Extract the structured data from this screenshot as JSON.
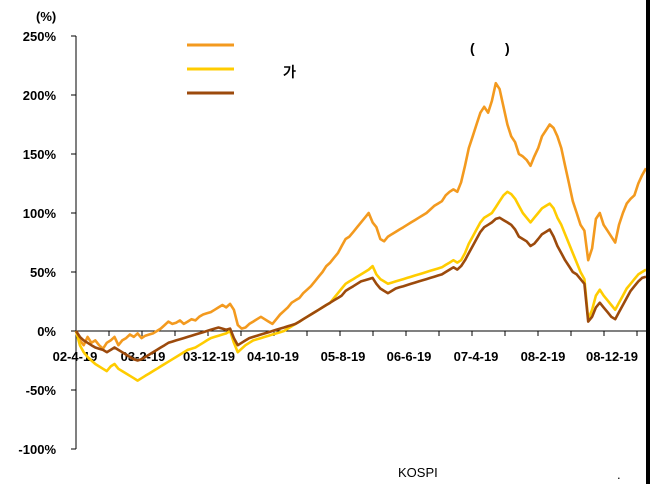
{
  "chart_data": {
    "type": "line",
    "unit_label": "(%)",
    "y_ticks": [
      "250%",
      "200%",
      "150%",
      "100%",
      "50%",
      "0%",
      "-50%",
      "-100%"
    ],
    "ylim": [
      -100,
      250
    ],
    "x_ticks": [
      "02-4-19",
      "03-2-19",
      "03-12-19",
      "04-10-19",
      "05-8-19",
      "06-6-19",
      "07-4-19",
      "08-2-19",
      "08-12-19"
    ],
    "legend_position": "top-center",
    "legend_extra": [
      "(",
      ")",
      "가"
    ],
    "footnote_left": "KOSPI",
    "footnote_right": ".",
    "grid": false,
    "series": [
      {
        "color": "#F39A1F",
        "values": [
          0,
          -8,
          -12,
          -5,
          -10,
          -8,
          -12,
          -15,
          -10,
          -8,
          -5,
          -12,
          -8,
          -6,
          -3,
          -5,
          -2,
          -6,
          -4,
          -3,
          -2,
          0,
          2,
          5,
          8,
          6,
          7,
          9,
          6,
          8,
          10,
          9,
          12,
          14,
          15,
          16,
          18,
          20,
          22,
          20,
          23,
          18,
          5,
          2,
          3,
          6,
          8,
          10,
          12,
          10,
          8,
          6,
          10,
          14,
          17,
          20,
          24,
          26,
          28,
          32,
          35,
          38,
          42,
          46,
          50,
          55,
          58,
          62,
          66,
          72,
          78,
          80,
          84,
          88,
          92,
          96,
          100,
          92,
          88,
          78,
          76,
          80,
          82,
          84,
          86,
          88,
          90,
          92,
          94,
          96,
          98,
          100,
          103,
          106,
          108,
          110,
          115,
          118,
          120,
          118,
          126,
          140,
          155,
          165,
          175,
          185,
          190,
          185,
          195,
          210,
          205,
          190,
          175,
          165,
          160,
          150,
          148,
          145,
          140,
          148,
          155,
          165,
          170,
          175,
          172,
          165,
          155,
          140,
          125,
          110,
          100,
          90,
          85,
          60,
          70,
          95,
          100,
          90,
          85,
          80,
          75,
          90,
          100,
          108,
          112,
          115,
          125,
          132,
          138
        ]
      },
      {
        "color": "#FFCC00",
        "values": [
          0,
          -12,
          -18,
          -22,
          -25,
          -28,
          -30,
          -32,
          -34,
          -30,
          -28,
          -32,
          -34,
          -36,
          -38,
          -40,
          -42,
          -40,
          -38,
          -36,
          -34,
          -32,
          -30,
          -28,
          -26,
          -24,
          -22,
          -20,
          -18,
          -16,
          -15,
          -14,
          -12,
          -10,
          -8,
          -6,
          -5,
          -4,
          -3,
          -2,
          0,
          -10,
          -18,
          -15,
          -12,
          -10,
          -8,
          -7,
          -6,
          -5,
          -4,
          -3,
          -2,
          -1,
          0,
          2,
          4,
          6,
          8,
          10,
          12,
          14,
          16,
          18,
          20,
          22,
          24,
          28,
          32,
          36,
          40,
          42,
          44,
          46,
          48,
          50,
          52,
          55,
          48,
          44,
          42,
          40,
          41,
          42,
          43,
          44,
          45,
          46,
          47,
          48,
          49,
          50,
          51,
          52,
          53,
          54,
          56,
          58,
          60,
          58,
          60,
          66,
          74,
          80,
          86,
          92,
          96,
          98,
          100,
          105,
          110,
          115,
          118,
          116,
          112,
          106,
          100,
          96,
          92,
          96,
          100,
          104,
          106,
          108,
          104,
          96,
          90,
          82,
          74,
          66,
          58,
          50,
          44,
          10,
          18,
          30,
          35,
          30,
          26,
          22,
          18,
          24,
          30,
          36,
          40,
          44,
          48,
          50,
          52
        ]
      },
      {
        "color": "#9C4A0C",
        "values": [
          0,
          -5,
          -8,
          -10,
          -12,
          -14,
          -15,
          -16,
          -18,
          -16,
          -14,
          -16,
          -18,
          -20,
          -22,
          -24,
          -25,
          -24,
          -22,
          -20,
          -18,
          -16,
          -14,
          -12,
          -10,
          -9,
          -8,
          -7,
          -6,
          -5,
          -4,
          -3,
          -2,
          -1,
          0,
          1,
          2,
          3,
          2,
          1,
          2,
          -6,
          -12,
          -10,
          -8,
          -6,
          -5,
          -4,
          -3,
          -2,
          -1,
          0,
          1,
          2,
          3,
          4,
          5,
          6,
          8,
          10,
          12,
          14,
          16,
          18,
          20,
          22,
          24,
          26,
          28,
          30,
          34,
          36,
          38,
          40,
          42,
          43,
          44,
          45,
          40,
          36,
          34,
          32,
          34,
          36,
          37,
          38,
          39,
          40,
          41,
          42,
          43,
          44,
          45,
          46,
          47,
          48,
          50,
          52,
          54,
          52,
          55,
          60,
          66,
          72,
          78,
          84,
          88,
          90,
          92,
          95,
          96,
          94,
          92,
          90,
          86,
          80,
          78,
          76,
          72,
          74,
          78,
          82,
          84,
          86,
          80,
          72,
          66,
          60,
          55,
          50,
          48,
          44,
          40,
          8,
          12,
          20,
          24,
          20,
          16,
          12,
          10,
          16,
          22,
          28,
          34,
          38,
          42,
          45,
          46
        ]
      }
    ]
  }
}
